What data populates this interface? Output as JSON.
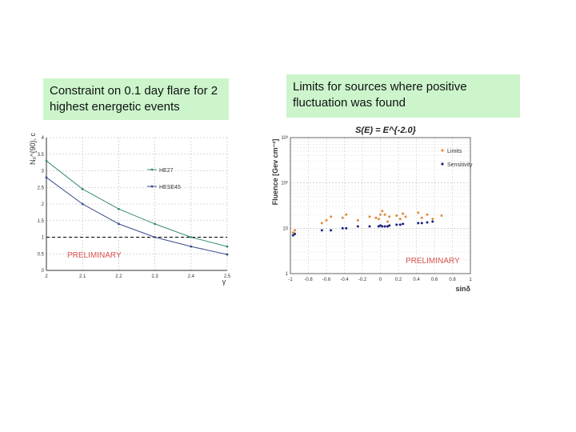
{
  "notes": {
    "left": "Constraint on 0.1 day flare for 2 highest energetic events",
    "right": "Limits for sources where positive fluctuation was found"
  },
  "chart_data": [
    {
      "type": "line",
      "title": "",
      "xlabel": "γ",
      "ylabel": "N₀^{90}, c",
      "xlim": [
        2,
        2.5
      ],
      "ylim": [
        0,
        4
      ],
      "x_ticks": [
        "2",
        "2.1",
        "2.2",
        "2.3",
        "2.4",
        "2.5"
      ],
      "y_ticks": [
        "0",
        "0.5",
        "1",
        "1.5",
        "2",
        "2.5",
        "3",
        "3.5",
        "4"
      ],
      "grid": true,
      "legend_position": "top-right",
      "annotation": "PRELIMINARY",
      "x": [
        2.0,
        2.1,
        2.2,
        2.3,
        2.4,
        2.5
      ],
      "series": [
        {
          "name": "HE27",
          "values": [
            3.3,
            2.45,
            1.85,
            1.4,
            1.0,
            0.72
          ]
        },
        {
          "name": "HESE45",
          "values": [
            2.8,
            2.0,
            1.4,
            1.0,
            0.72,
            0.48
          ]
        }
      ],
      "reference_line": 1
    },
    {
      "type": "scatter",
      "title": "S(E) = E^{-2.0}",
      "xlabel": "sinδ",
      "ylabel": "Fluence [Gev cm⁻²]",
      "xlim": [
        -1,
        1
      ],
      "ylim": [
        1,
        1000
      ],
      "log_y": true,
      "x_ticks": [
        "-1",
        "-0.8",
        "-0.6",
        "-0.4",
        "-0.2",
        "0",
        "0.2",
        "0.4",
        "0.6",
        "0.8",
        "1"
      ],
      "y_ticks": [
        "1",
        "10",
        "10²",
        "10³"
      ],
      "grid": true,
      "legend_position": "top-right",
      "annotation": "PRELIMINARY",
      "series": [
        {
          "name": "Limits",
          "color": "#e08a3c",
          "x": [
            -0.97,
            -0.95,
            -0.65,
            -0.6,
            -0.55,
            -0.42,
            -0.38,
            -0.25,
            -0.12,
            -0.05,
            -0.02,
            0.0,
            0.02,
            0.05,
            0.08,
            0.1,
            0.18,
            0.22,
            0.25,
            0.28,
            0.42,
            0.46,
            0.52,
            0.58,
            0.68
          ],
          "y": [
            8,
            9,
            13,
            15,
            18,
            17,
            20,
            15,
            18,
            17,
            16,
            20,
            24,
            20,
            14,
            18,
            19,
            16,
            21,
            18,
            22,
            17,
            20,
            16,
            19
          ]
        },
        {
          "name": "Sensitivity",
          "color": "#1a237e",
          "x": [
            -0.97,
            -0.95,
            -0.65,
            -0.55,
            -0.42,
            -0.38,
            -0.25,
            -0.12,
            -0.02,
            0.0,
            0.02,
            0.05,
            0.08,
            0.1,
            0.18,
            0.22,
            0.25,
            0.42,
            0.46,
            0.52,
            0.58
          ],
          "y": [
            7,
            7.5,
            9,
            9,
            10,
            10,
            11,
            11,
            11,
            11.5,
            11,
            11,
            11,
            11.5,
            12,
            12,
            12.5,
            13,
            13,
            13.5,
            14
          ]
        }
      ]
    }
  ]
}
